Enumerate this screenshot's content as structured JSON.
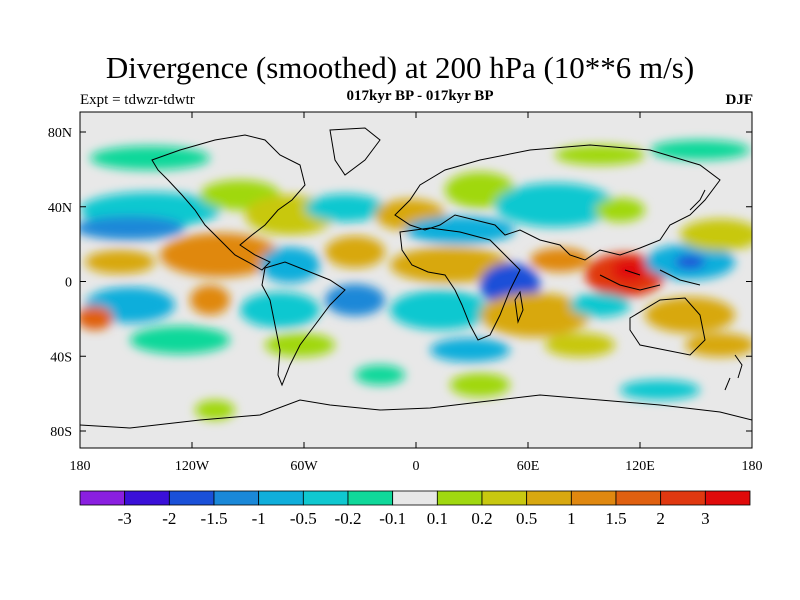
{
  "header": {
    "title": "Divergence (smoothed) at 200 hPa (10**6 m/s)",
    "left_label": "Expt = tdwzr-tdwtr",
    "center_label": "017kyr BP - 017kyr BP",
    "right_label": "DJF"
  },
  "map": {
    "projection": "cylindrical equidistant",
    "background_color": "#e8e8e8",
    "lon_ticks": [
      "180",
      "120W",
      "60W",
      "0",
      "60E",
      "120E",
      "180"
    ],
    "lat_ticks": [
      "80N",
      "40N",
      "0",
      "40S",
      "80S"
    ]
  },
  "colorbar": {
    "colors": [
      "#8a1fe0",
      "#3a10d8",
      "#1a50d8",
      "#1a88d8",
      "#10aedb",
      "#10c8d0",
      "#10d89a",
      "#e8e8e8",
      "#a0d810",
      "#c8c810",
      "#d8a810",
      "#e08810",
      "#e06010",
      "#e03810",
      "#e00a0a"
    ],
    "labels": [
      "-3",
      "-2",
      "-1.5",
      "-1",
      "-0.5",
      "-0.2",
      "-0.1",
      "0.1",
      "0.2",
      "0.5",
      "1",
      "1.5",
      "2",
      "3"
    ]
  }
}
